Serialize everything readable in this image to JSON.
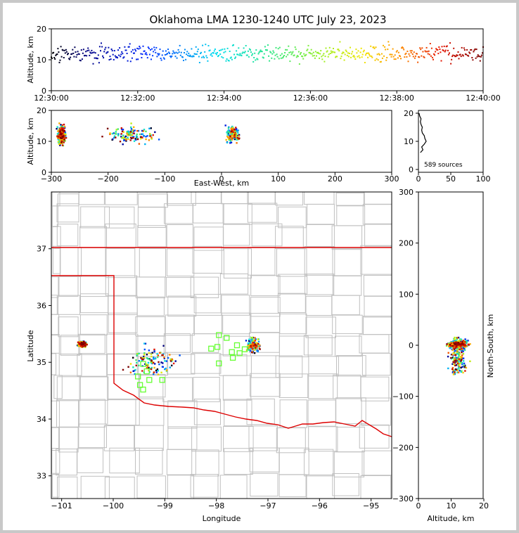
{
  "title": "Oklahoma LMA 1230-1240 UTC July 23, 2023",
  "sources_label": "589 sources",
  "colors": {
    "state_line": "#dd0000",
    "county_line": "#c0c0c0",
    "station": "#66ff33"
  },
  "chart_data": [
    {
      "id": "time-height",
      "type": "scatter",
      "ylabel": "Altitude, km",
      "xlim": [
        "12:30:00",
        "12:40:00"
      ],
      "ylim": [
        0,
        20
      ],
      "x_ticks": [
        "12:30:00",
        "12:32:00",
        "12:34:00",
        "12:36:00",
        "12:38:00",
        "12:40:00"
      ],
      "y_ticks": [
        "0",
        "10",
        "20"
      ],
      "color_by": "time"
    },
    {
      "id": "ew-height",
      "type": "scatter",
      "xlabel": "East-West, km",
      "ylabel": "Altitude, km",
      "xlim": [
        -300,
        300
      ],
      "ylim": [
        0,
        20
      ],
      "x_ticks": [
        "−300",
        "−200",
        "−100",
        "0",
        "100",
        "200",
        "300"
      ],
      "y_ticks": [
        "0",
        "10",
        "20"
      ],
      "color_by": "time"
    },
    {
      "id": "altitude-histogram",
      "type": "line",
      "xlim": [
        0,
        100
      ],
      "ylim": [
        0,
        20
      ],
      "x_ticks": [
        "0",
        "50",
        "100"
      ],
      "y_ticks": [
        "0",
        "10",
        "20"
      ],
      "altitude_km": [
        6,
        7,
        8,
        9,
        10,
        11,
        12,
        13,
        14,
        15,
        16,
        17,
        18,
        19,
        20
      ],
      "counts": [
        3,
        7,
        5,
        9,
        12,
        10,
        9,
        6,
        5,
        6,
        4,
        3,
        4,
        2,
        1
      ]
    },
    {
      "id": "plan-view",
      "type": "scatter",
      "xlabel": "Longitude",
      "ylabel": "Latitude",
      "xlim": [
        -101.2,
        -94.6
      ],
      "ylim": [
        32.6,
        38.0
      ],
      "x_ticks": [
        "−101",
        "−100",
        "−99",
        "−98",
        "−97",
        "−96",
        "−95"
      ],
      "y_ticks": [
        "33",
        "34",
        "35",
        "36",
        "37"
      ],
      "stations": [
        [
          -97.95,
          35.48
        ],
        [
          -97.8,
          35.43
        ],
        [
          -97.98,
          35.27
        ],
        [
          -98.1,
          35.24
        ],
        [
          -97.7,
          35.18
        ],
        [
          -97.55,
          35.16
        ],
        [
          -97.45,
          35.23
        ],
        [
          -97.68,
          35.08
        ],
        [
          -97.95,
          34.98
        ],
        [
          -97.6,
          35.3
        ],
        [
          -99.42,
          34.97
        ],
        [
          -99.35,
          34.84
        ],
        [
          -99.52,
          34.75
        ],
        [
          -99.3,
          34.69
        ],
        [
          -99.05,
          34.69
        ],
        [
          -99.48,
          34.6
        ],
        [
          -99.42,
          34.52
        ]
      ]
    },
    {
      "id": "height-ns",
      "type": "scatter",
      "xlabel": "Altitude, km",
      "ylabel": "North-South, km",
      "xlim": [
        0,
        20
      ],
      "ylim": [
        -300,
        300
      ],
      "x_ticks": [
        "0",
        "10",
        "20"
      ],
      "y_ticks": [
        "−300",
        "−200",
        "−100",
        "0",
        "100",
        "200",
        "300"
      ],
      "color_by": "time"
    }
  ]
}
